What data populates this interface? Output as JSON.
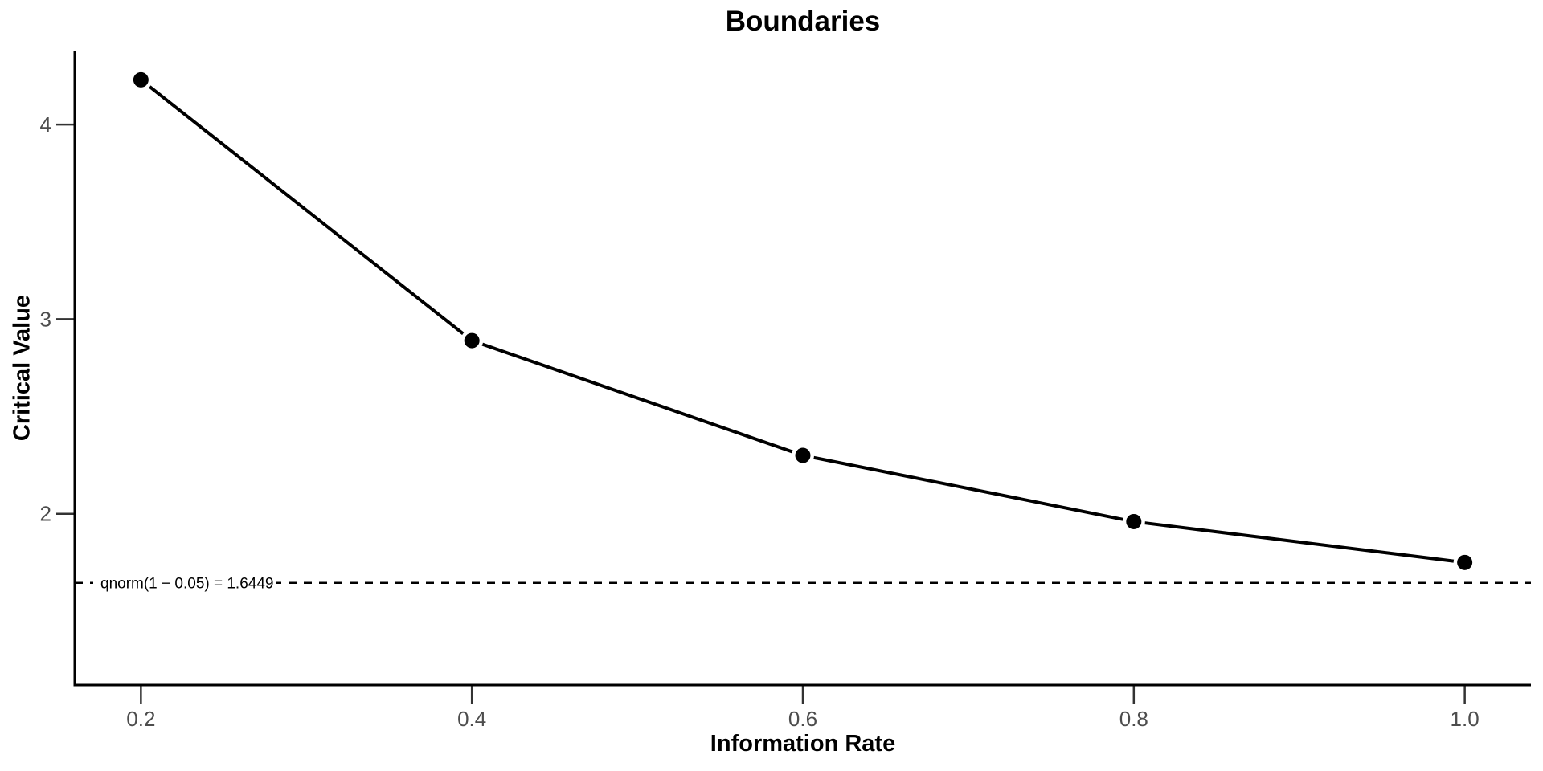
{
  "chart_data": {
    "type": "line",
    "title": "Boundaries",
    "xlabel": "Information Rate",
    "ylabel": "Critical Value",
    "x": [
      0.2,
      0.4,
      0.6,
      0.8,
      1.0
    ],
    "y": [
      4.23,
      2.89,
      2.3,
      1.96,
      1.75
    ],
    "x_ticks": {
      "values": [
        0.2,
        0.4,
        0.6,
        0.8,
        1.0
      ],
      "labels": [
        "0.2",
        "0.4",
        "0.6",
        "0.8",
        "1.0"
      ]
    },
    "y_ticks": {
      "values": [
        2,
        3,
        4
      ],
      "labels": [
        "2",
        "3",
        "4"
      ]
    },
    "xlim": [
      0.16,
      1.04
    ],
    "ylim": [
      1.12,
      4.38
    ],
    "grid": false,
    "legend": "none",
    "marker": "filled-circle",
    "reference_line": {
      "value": 1.6449,
      "label": "qnorm(1 − 0.05) = 1.6449",
      "style": "dashed"
    },
    "colors": {
      "line": "#000000",
      "marker": "#000000",
      "axis": "#000000",
      "tick": "#333333",
      "tick_label": "#4d4d4d",
      "text": "#000000",
      "background": "#ffffff"
    }
  }
}
